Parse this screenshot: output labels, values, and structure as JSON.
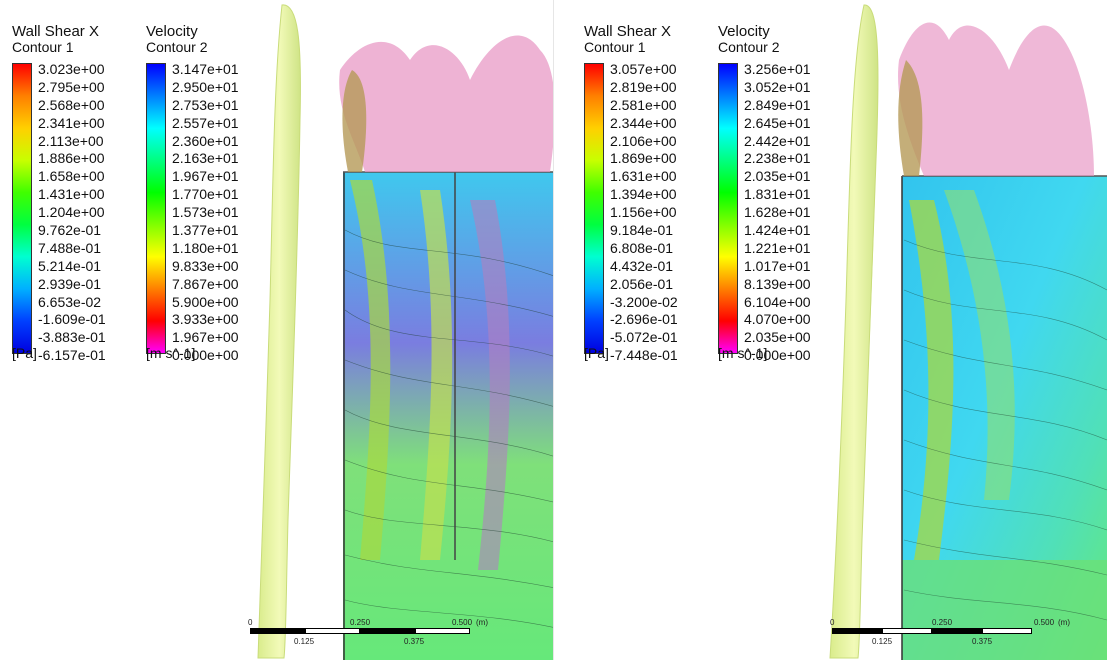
{
  "panels": [
    {
      "legend1": {
        "title": "Wall Shear X",
        "subtitle": "Contour 1",
        "ticks": [
          "3.023e+00",
          "2.795e+00",
          "2.568e+00",
          "2.341e+00",
          "2.113e+00",
          "1.886e+00",
          "1.658e+00",
          "1.431e+00",
          "1.204e+00",
          "9.762e-01",
          "7.488e-01",
          "5.214e-01",
          "2.939e-01",
          "6.653e-02",
          "-1.609e-01",
          "-3.883e-01",
          "-6.157e-01"
        ],
        "unit": "[Pa]"
      },
      "legend2": {
        "title": "Velocity",
        "subtitle": "Contour 2",
        "ticks": [
          "3.147e+01",
          "2.950e+01",
          "2.753e+01",
          "2.557e+01",
          "2.360e+01",
          "2.163e+01",
          "1.967e+01",
          "1.770e+01",
          "1.573e+01",
          "1.377e+01",
          "1.180e+01",
          "9.833e+00",
          "7.867e+00",
          "5.900e+00",
          "3.933e+00",
          "1.967e+00",
          "0.000e+00"
        ],
        "unit": "[m s^-1]"
      },
      "scale": {
        "zero": "0",
        "mid": "0.250",
        "end": "0.500",
        "unit": "(m)",
        "q1": "0.125",
        "q3": "0.375"
      }
    },
    {
      "legend1": {
        "title": "Wall Shear X",
        "subtitle": "Contour 1",
        "ticks": [
          "3.057e+00",
          "2.819e+00",
          "2.581e+00",
          "2.344e+00",
          "2.106e+00",
          "1.869e+00",
          "1.631e+00",
          "1.394e+00",
          "1.156e+00",
          "9.184e-01",
          "6.808e-01",
          "4.432e-01",
          "2.056e-01",
          "-3.200e-02",
          "-2.696e-01",
          "-5.072e-01",
          "-7.448e-01"
        ],
        "unit": "[Pa]"
      },
      "legend2": {
        "title": "Velocity",
        "subtitle": "Contour 2",
        "ticks": [
          "3.256e+01",
          "3.052e+01",
          "2.849e+01",
          "2.645e+01",
          "2.442e+01",
          "2.238e+01",
          "2.035e+01",
          "1.831e+01",
          "1.628e+01",
          "1.424e+01",
          "1.221e+01",
          "1.017e+01",
          "8.139e+00",
          "6.104e+00",
          "4.070e+00",
          "2.035e+00",
          "0.000e+00"
        ],
        "unit": "[m s^-1]"
      },
      "scale": {
        "zero": "0",
        "mid": "0.250",
        "end": "0.500",
        "unit": "(m)",
        "q1": "0.125",
        "q3": "0.375"
      }
    }
  ],
  "colors": {
    "shear_scale": [
      "#ff0000",
      "#ff8000",
      "#ffd000",
      "#c8ff00",
      "#40ff00",
      "#00ff40",
      "#00ffd0",
      "#00b0ff",
      "#0040ff",
      "#0000e0"
    ],
    "velocity_scale": [
      "#0000ff",
      "#0080ff",
      "#00ffff",
      "#00ff80",
      "#00ff00",
      "#80ff00",
      "#ffff00",
      "#ff8000",
      "#ff0000",
      "#ff00ff"
    ],
    "isosurface": "#e8f5a0",
    "plume": "#e85aa8"
  }
}
